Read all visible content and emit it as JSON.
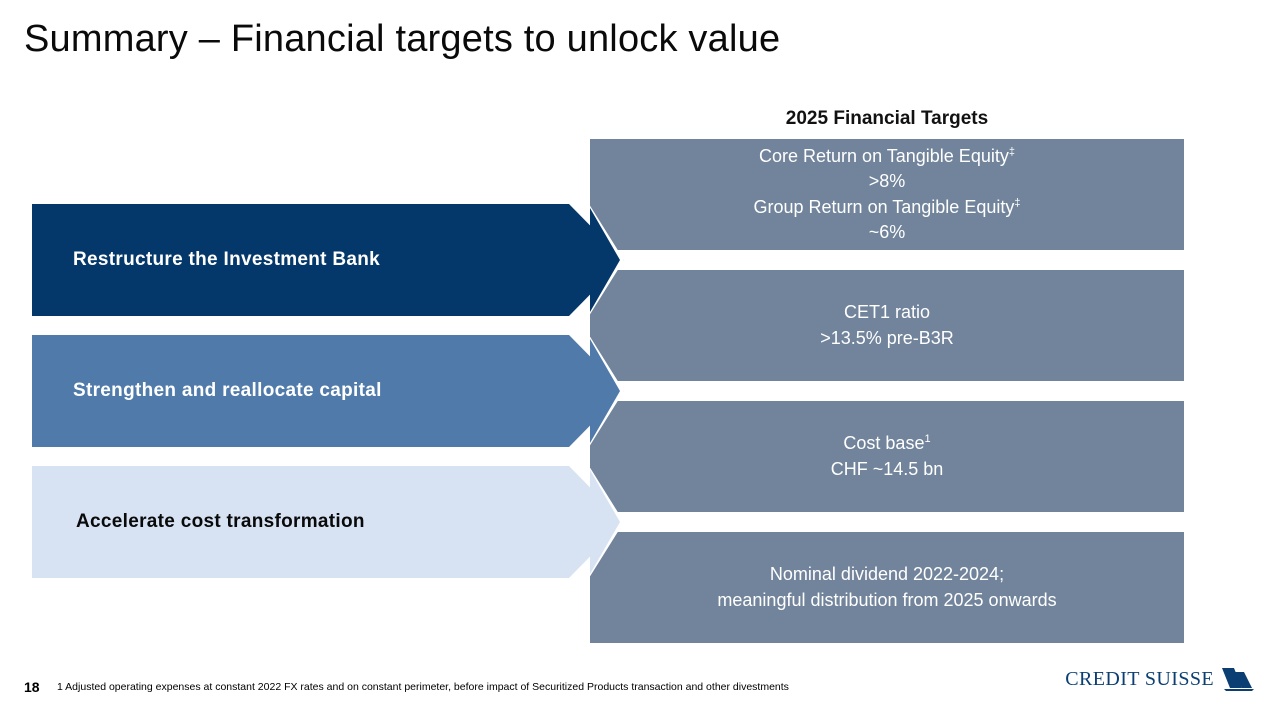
{
  "title": "Summary – Financial targets to unlock value",
  "targets_heading": "2025 Financial Targets",
  "pillars": [
    {
      "label": "Restructure the Investment Bank",
      "color": "#05386a"
    },
    {
      "label": "Strengthen and reallocate capital",
      "color": "#4f7aaa"
    },
    {
      "label": "Accelerate cost transformation",
      "color": "#d7e3f3"
    }
  ],
  "targets": [
    {
      "line1": "Core Return on Tangible Equity",
      "line1_mark": "‡",
      "line2": ">8%",
      "line3": "Group Return on Tangible Equity",
      "line3_mark": "‡",
      "line4": "~6%"
    },
    {
      "line1": "CET1 ratio",
      "line2": ">13.5% pre-B3R"
    },
    {
      "line1": "Cost base",
      "line1_mark": "1",
      "line2": "CHF ~14.5 bn"
    },
    {
      "line1": "Nominal dividend 2022-2024;",
      "line2": "meaningful distribution from 2025 onwards"
    }
  ],
  "box_color": "#71849b",
  "footer": {
    "page_number": "18",
    "footnote": "1 Adjusted operating expenses at constant 2022 FX rates and on constant perimeter, before impact of Securitized Products transaction and other divestments",
    "logo_text": "CREDIT SUISSE",
    "logo_icon": "sailboat-logo-icon"
  }
}
